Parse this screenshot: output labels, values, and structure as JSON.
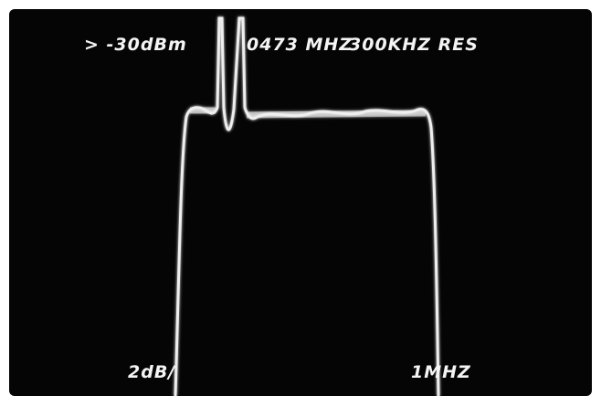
{
  "screen": {
    "reference_level": "> -30dBm",
    "center_frequency": "0473 MHZ",
    "resolution": "300KHZ RES",
    "scale": "2dB/",
    "span": "1MHZ"
  }
}
